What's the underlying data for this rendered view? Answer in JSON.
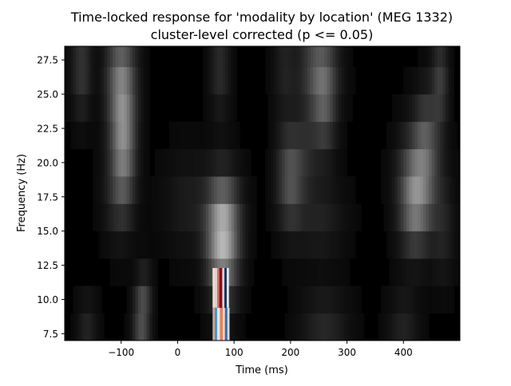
{
  "chart_data": {
    "type": "heatmap",
    "title": "Time-locked response for 'modality by location' (MEG 1332)",
    "subtitle": "cluster-level corrected (p <= 0.05)",
    "xlabel": "Time (ms)",
    "ylabel": "Frequency (Hz)",
    "xlim": [
      -200,
      500
    ],
    "ylim": [
      7,
      28.5
    ],
    "xticks": [
      -100,
      0,
      100,
      200,
      300,
      400
    ],
    "xtick_labels": [
      "−100",
      "0",
      "100",
      "200",
      "300",
      "400"
    ],
    "yticks": [
      7.5,
      10.0,
      12.5,
      15.0,
      17.5,
      20.0,
      22.5,
      25.0,
      27.5
    ],
    "ytick_labels": [
      "7.5",
      "10.0",
      "12.5",
      "15.0",
      "17.5",
      "20.0",
      "22.5",
      "25.0",
      "27.5"
    ],
    "colormap": "grayscale background with red-blue significant cluster",
    "frequency_bins": [
      8,
      10,
      12,
      14,
      16,
      18,
      20,
      22,
      24,
      26,
      28
    ],
    "intensity_blobs": [
      {
        "t": -170,
        "f": 27,
        "w": 12,
        "fw": 2.4,
        "a": 0.18
      },
      {
        "t": -100,
        "f": 27,
        "w": 18,
        "fw": 2.6,
        "a": 0.28
      },
      {
        "t": -100,
        "f": 24,
        "w": 16,
        "fw": 2.6,
        "a": 0.22
      },
      {
        "t": -95,
        "f": 21,
        "w": 14,
        "fw": 2.8,
        "a": 0.32
      },
      {
        "t": -105,
        "f": 18,
        "w": 18,
        "fw": 2.4,
        "a": 0.14
      },
      {
        "t": -60,
        "f": 10,
        "w": 10,
        "fw": 1.6,
        "a": 0.18
      },
      {
        "t": -65,
        "f": 8,
        "w": 10,
        "fw": 1.6,
        "a": 0.2
      },
      {
        "t": -160,
        "f": 8,
        "w": 12,
        "fw": 1.6,
        "a": 0.1
      },
      {
        "t": 75,
        "f": 27,
        "w": 12,
        "fw": 2.4,
        "a": 0.14
      },
      {
        "t": 80,
        "f": 14,
        "w": 18,
        "fw": 2.8,
        "a": 0.55
      },
      {
        "t": 80,
        "f": 16,
        "w": 22,
        "fw": 2.2,
        "a": 0.2
      },
      {
        "t": 20,
        "f": 17,
        "w": 30,
        "fw": 2.4,
        "a": 0.08
      },
      {
        "t": 190,
        "f": 27,
        "w": 14,
        "fw": 2.4,
        "a": 0.1
      },
      {
        "t": 200,
        "f": 19,
        "w": 16,
        "fw": 2.4,
        "a": 0.3
      },
      {
        "t": 250,
        "f": 27,
        "w": 22,
        "fw": 2.4,
        "a": 0.3
      },
      {
        "t": 260,
        "f": 24,
        "w": 14,
        "fw": 2.4,
        "a": 0.22
      },
      {
        "t": 230,
        "f": 21,
        "w": 14,
        "fw": 2.0,
        "a": 0.1
      },
      {
        "t": 250,
        "f": 16,
        "w": 30,
        "fw": 2.0,
        "a": 0.1
      },
      {
        "t": 260,
        "f": 8,
        "w": 28,
        "fw": 1.8,
        "a": 0.12
      },
      {
        "t": 400,
        "f": 8,
        "w": 18,
        "fw": 1.8,
        "a": 0.1
      },
      {
        "t": 420,
        "f": 17,
        "w": 18,
        "fw": 2.4,
        "a": 0.34
      },
      {
        "t": 430,
        "f": 19,
        "w": 24,
        "fw": 2.6,
        "a": 0.25
      },
      {
        "t": 440,
        "f": 22,
        "w": 14,
        "fw": 2.4,
        "a": 0.2
      },
      {
        "t": 465,
        "f": 26,
        "w": 10,
        "fw": 2.4,
        "a": 0.2
      },
      {
        "t": 470,
        "f": 15,
        "w": 14,
        "fw": 2.4,
        "a": 0.1
      }
    ],
    "significant_cluster": [
      {
        "t_start": 62,
        "t_end": 66,
        "f_start": 7,
        "f_end": 9.4,
        "color": "#c9a79a"
      },
      {
        "t_start": 66,
        "t_end": 70,
        "f_start": 7,
        "f_end": 9.4,
        "color": "#4a9bd1"
      },
      {
        "t_start": 70,
        "t_end": 75,
        "f_start": 7,
        "f_end": 9.4,
        "color": "#ece2dc"
      },
      {
        "t_start": 75,
        "t_end": 80,
        "f_start": 7,
        "f_end": 9.4,
        "color": "#e3825f"
      },
      {
        "t_start": 80,
        "t_end": 84,
        "f_start": 7,
        "f_end": 9.4,
        "color": "#f2d9cf"
      },
      {
        "t_start": 84,
        "t_end": 88,
        "f_start": 7,
        "f_end": 9.4,
        "color": "#2c6fb0"
      },
      {
        "t_start": 88,
        "t_end": 92,
        "f_start": 7,
        "f_end": 9.4,
        "color": "#d7d7d7"
      },
      {
        "t_start": 62,
        "t_end": 66,
        "f_start": 9.4,
        "f_end": 12.3,
        "color": "#f3dcd4"
      },
      {
        "t_start": 66,
        "t_end": 70,
        "f_start": 9.4,
        "f_end": 12.3,
        "color": "#e8d8d2"
      },
      {
        "t_start": 70,
        "t_end": 74,
        "f_start": 9.4,
        "f_end": 12.3,
        "color": "#d27562"
      },
      {
        "t_start": 74,
        "t_end": 79,
        "f_start": 9.4,
        "f_end": 12.3,
        "color": "#8b0a1e"
      },
      {
        "t_start": 79,
        "t_end": 83,
        "f_start": 9.4,
        "f_end": 12.3,
        "color": "#d6cfcc"
      },
      {
        "t_start": 83,
        "t_end": 87,
        "f_start": 9.4,
        "f_end": 12.3,
        "color": "#0f2e63"
      },
      {
        "t_start": 87,
        "t_end": 91,
        "f_start": 9.4,
        "f_end": 12.3,
        "color": "#e4e4e4"
      }
    ]
  }
}
